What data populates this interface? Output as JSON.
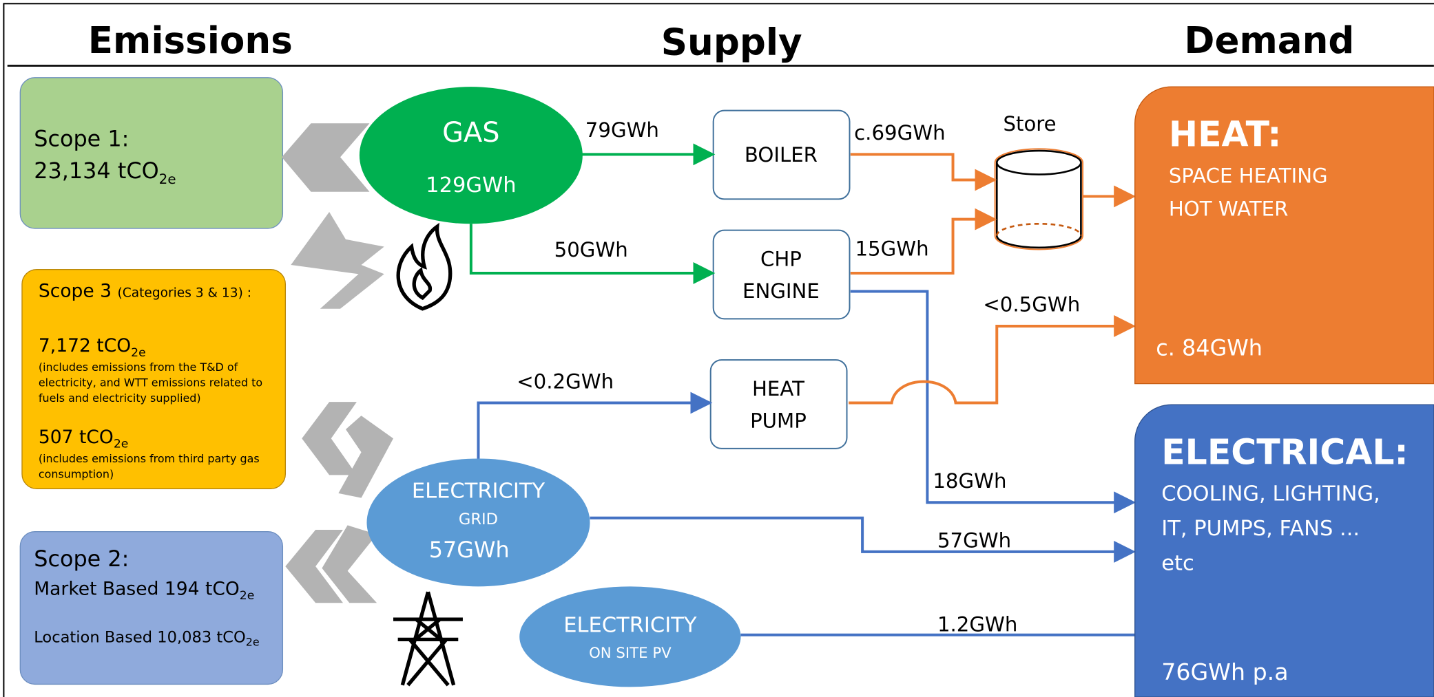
{
  "headers": [
    "Emissions",
    "Supply",
    "Demand"
  ],
  "emissions": {
    "scope1": {
      "label": "Scope 1:",
      "value": "23,134 tCO",
      "sub": "2e"
    },
    "scope3": {
      "label": "Scope 3",
      "qualifier": "(Categories 3 & 13) :",
      "items": [
        {
          "value": "7,172 tCO",
          "sub": "2e",
          "note": [
            "(includes emissions from the T&D of",
            "electricity, and WTT emissions related to",
            "fuels and electricity supplied)"
          ]
        },
        {
          "value": "507 tCO",
          "sub": "2e",
          "note": [
            "(includes emissions from third party gas",
            "consumption)"
          ]
        }
      ]
    },
    "scope2": {
      "label": "Scope 2:",
      "market": {
        "value": "Market Based 194 tCO",
        "sub": "2e"
      },
      "location": {
        "value": "Location Based 10,083 tCO",
        "sub": "2e"
      }
    }
  },
  "supply": {
    "gas": {
      "label": "GAS",
      "value": "129GWh"
    },
    "grid": {
      "label": "ELECTRICITY",
      "sub": "GRID",
      "value": "57GWh"
    },
    "pv": {
      "label": "ELECTRICITY",
      "sub": "ON SITE PV"
    },
    "boiler": "BOILER",
    "chp": [
      "CHP",
      "ENGINE"
    ],
    "heat_pump": [
      "HEAT",
      "PUMP"
    ],
    "store": "Store"
  },
  "flows": {
    "gas_boiler": "79GWh",
    "gas_chp": "50GWh",
    "boiler_store": "c.69GWh",
    "chp_store": "15GWh",
    "hp_heat": "<0.5GWh",
    "grid_hp": "<0.2GWh",
    "chp_elec": "18GWh",
    "grid_elec": "57GWh",
    "pv_elec": "1.2GWh"
  },
  "demand": {
    "heat": {
      "title": "HEAT:",
      "lines": [
        "SPACE HEATING",
        "HOT WATER"
      ],
      "value": "c. 84GWh"
    },
    "electrical": {
      "title": "ELECTRICAL:",
      "lines": [
        "COOLING, LIGHTING,",
        "IT, PUMPS,  FANS ...",
        "etc"
      ],
      "value": "76GWh p.a"
    }
  }
}
